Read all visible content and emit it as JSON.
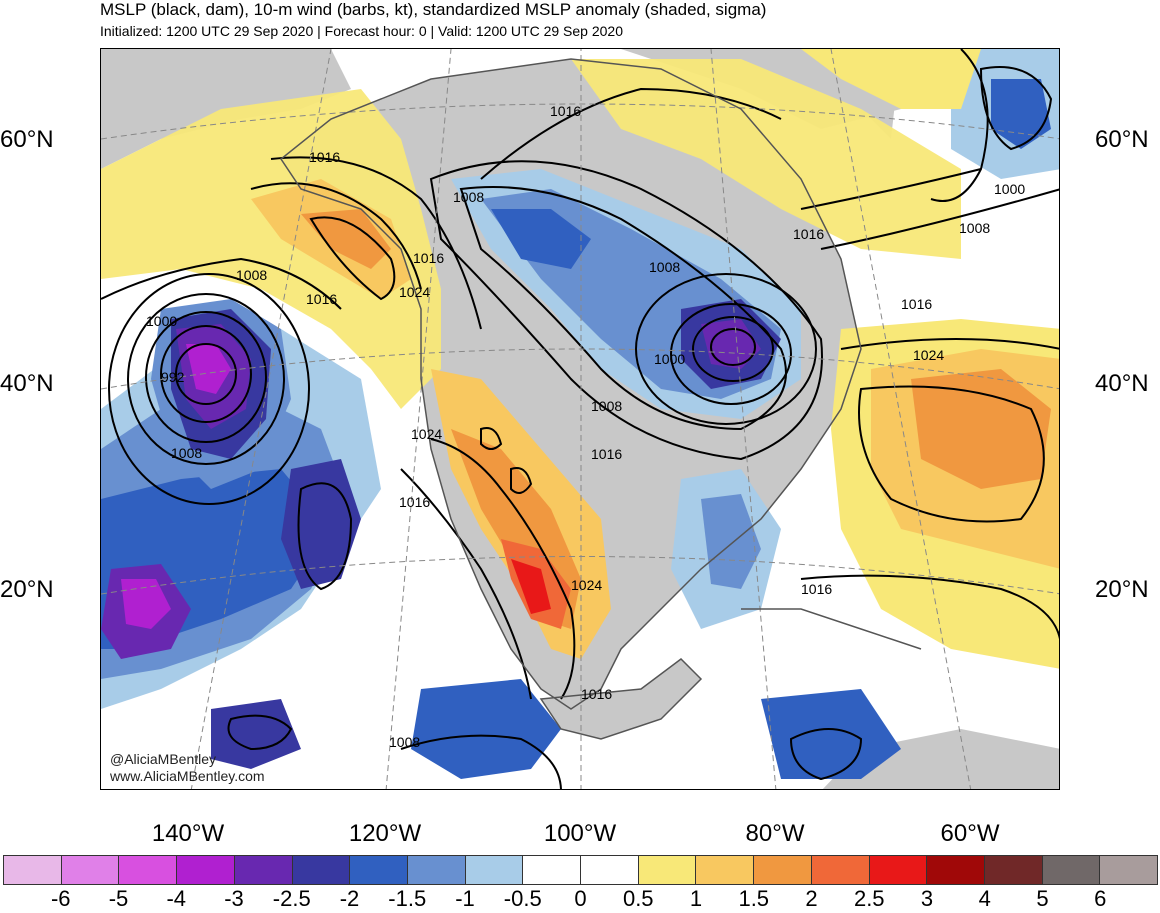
{
  "header": {
    "title": "MSLP (black, dam), 10-m wind (barbs, kt), standardized MSLP anomaly (shaded, sigma)",
    "subtitle": "Initialized: 1200 UTC 29 Sep 2020 | Forecast hour: 0 | Valid: 1200 UTC 29 Sep 2020"
  },
  "map": {
    "lat_labels": [
      "60°N",
      "40°N",
      "20°N"
    ],
    "lon_labels": [
      "140°W",
      "120°W",
      "100°W",
      "80°W",
      "60°W"
    ],
    "contour_labels": [
      "1016",
      "1008",
      "1016",
      "1016",
      "1024",
      "1000",
      "992",
      "1008",
      "1024",
      "1016",
      "1016",
      "1008",
      "1008",
      "1000",
      "1016",
      "1024",
      "1016",
      "1008",
      "1016",
      "1000",
      "1008",
      "1016",
      "1024",
      "1016"
    ],
    "colors": {
      "land": "#c8c8c8",
      "ocean": "#ffffff",
      "contour": "#000000",
      "coast": "#555555"
    }
  },
  "credits": {
    "handle": "@AliciaMBentley",
    "website": "www.AliciaMBentley.com"
  },
  "colorbar": {
    "colors": [
      "#e8b8e8",
      "#e080e8",
      "#d850e0",
      "#b020d0",
      "#6828b0",
      "#3838a0",
      "#3060c0",
      "#6890d0",
      "#a8cce8",
      "#ffffff",
      "#ffffff",
      "#f8e878",
      "#f8c860",
      "#f09840",
      "#f06838",
      "#e81818",
      "#a00808",
      "#702828",
      "#706868",
      "#a89c9c"
    ],
    "labels": [
      "-6",
      "-5",
      "-4",
      "-3",
      "-2.5",
      "-2",
      "-1.5",
      "-1",
      "-0.5",
      "0",
      "0.5",
      "1",
      "1.5",
      "2",
      "2.5",
      "3",
      "4",
      "5",
      "6"
    ]
  }
}
